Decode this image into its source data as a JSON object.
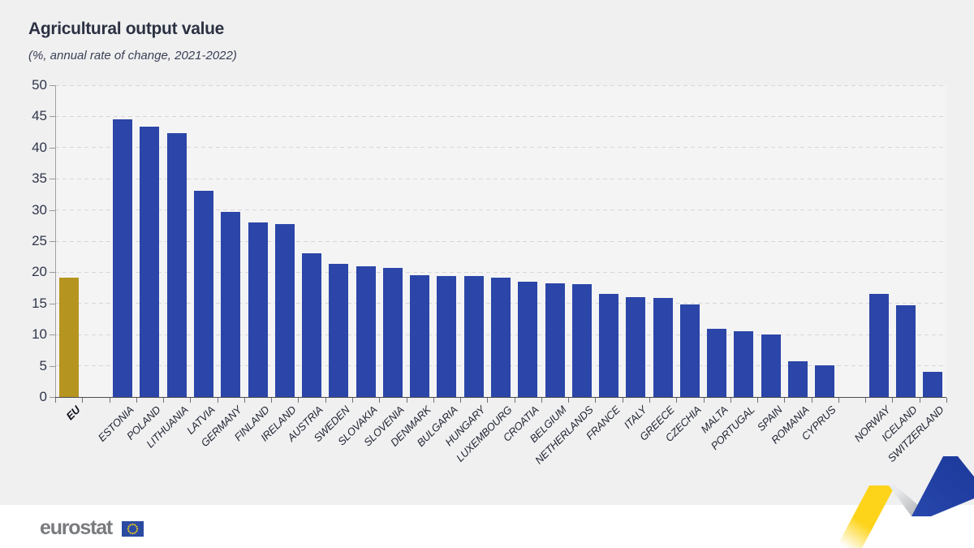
{
  "page": {
    "background": "#ffffff",
    "card_background": "#f0f0f1",
    "plot_background": "#f4f4f5"
  },
  "header": {
    "title": "Agricultural output value",
    "subtitle": "(%, annual rate of change, 2021-2022)"
  },
  "chart_data": {
    "type": "bar",
    "title": "Agricultural output value",
    "subtitle": "(%, annual rate of change, 2021-2022)",
    "xlabel": "",
    "ylabel": "",
    "ylim": [
      0,
      50
    ],
    "yticks": [
      0,
      5,
      10,
      15,
      20,
      25,
      30,
      35,
      40,
      45,
      50
    ],
    "grid": "horizontal-dashed",
    "legend": "none",
    "bar_colors": {
      "eu": "#b5941f",
      "default": "#2b46a8"
    },
    "bars": [
      {
        "label": "EU",
        "value": 19.2,
        "color": "eu",
        "bold": true
      },
      {
        "label": "ESTONIA",
        "value": 44.5,
        "gap_before": true
      },
      {
        "label": "POLAND",
        "value": 43.3
      },
      {
        "label": "LITHUANIA",
        "value": 42.3
      },
      {
        "label": "LATVIA",
        "value": 33.1
      },
      {
        "label": "GERMANY",
        "value": 29.7
      },
      {
        "label": "FINLAND",
        "value": 28.0
      },
      {
        "label": "IRELAND",
        "value": 27.7
      },
      {
        "label": "AUSTRIA",
        "value": 23.0
      },
      {
        "label": "SWEDEN",
        "value": 21.4
      },
      {
        "label": "SLOVAKIA",
        "value": 20.9
      },
      {
        "label": "SLOVENIA",
        "value": 20.7
      },
      {
        "label": "DENMARK",
        "value": 19.5
      },
      {
        "label": "BULGARIA",
        "value": 19.4
      },
      {
        "label": "HUNGARY",
        "value": 19.4
      },
      {
        "label": "LUXEMBOURG",
        "value": 19.2
      },
      {
        "label": "CROATIA",
        "value": 18.5
      },
      {
        "label": "BELGIUM",
        "value": 18.2
      },
      {
        "label": "NETHERLANDS",
        "value": 18.1
      },
      {
        "label": "FRANCE",
        "value": 16.5
      },
      {
        "label": "ITALY",
        "value": 16.0
      },
      {
        "label": "GREECE",
        "value": 15.9
      },
      {
        "label": "CZECHIA",
        "value": 14.8
      },
      {
        "label": "MALTA",
        "value": 10.9
      },
      {
        "label": "PORTUGAL",
        "value": 10.5
      },
      {
        "label": "SPAIN",
        "value": 10.0
      },
      {
        "label": "ROMANIA",
        "value": 5.7
      },
      {
        "label": "CYPRUS",
        "value": 5.1
      },
      {
        "label": "NORWAY",
        "value": 16.5,
        "gap_before": true
      },
      {
        "label": "ICELAND",
        "value": 14.7
      },
      {
        "label": "SWITZERLAND",
        "value": 4.1
      }
    ]
  },
  "footer": {
    "logo_text": "eurostat"
  },
  "decoration": {
    "ribbon_yellow": "#fdd41a",
    "ribbon_gray": "#a7a9ad",
    "ribbon_blue": "#2847ac",
    "ribbon_blue_dark": "#1d3a9c",
    "flag_blue": "#2b4aa2",
    "flag_star_yellow": "#f8d012"
  }
}
